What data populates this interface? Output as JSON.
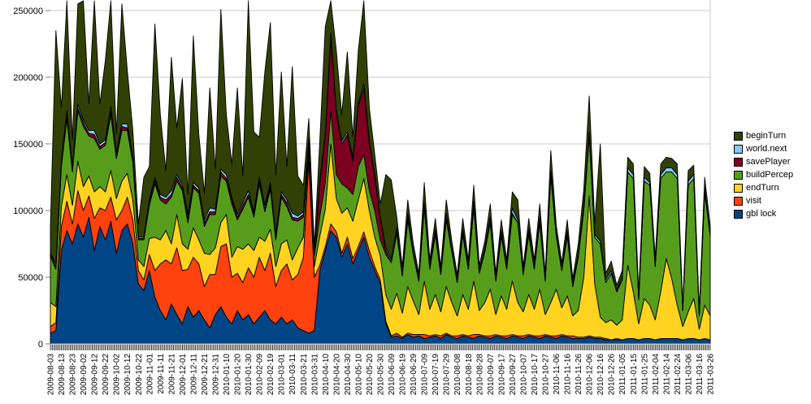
{
  "chart_data": {
    "type": "area",
    "stacked": true,
    "title": "",
    "xlabel": "",
    "ylabel": "",
    "grid": true,
    "legend_position": "right",
    "values_unit": 1000,
    "sample_interval_days": 5,
    "y_axis": {
      "ticks": [
        0,
        50000,
        100000,
        150000,
        200000,
        250000
      ],
      "labels": [
        "0",
        "50000",
        "100000",
        "150000",
        "200000",
        "250000"
      ],
      "ylim": [
        0,
        250000
      ]
    },
    "x_axis": {
      "tick_interval_days": 10,
      "tick_labels": [
        "2009-08-03",
        "2009-08-13",
        "2009-08-23",
        "2009-09-02",
        "2009-09-12",
        "2009-09-22",
        "2009-10-02",
        "2009-10-12",
        "2009-10-22",
        "2009-11-01",
        "2009-11-11",
        "2009-11-21",
        "2009-12-01",
        "2009-12-11",
        "2009-12-21",
        "2009-12-31",
        "2010-01-10",
        "2010-01-20",
        "2010-01-30",
        "2010-02-09",
        "2010-02-19",
        "2010-03-01",
        "2010-03-11",
        "2010-03-21",
        "2010-03-31",
        "2010-04-10",
        "2010-04-20",
        "2010-04-30",
        "2010-05-10",
        "2010-05-20",
        "2010-05-30",
        "2010-06-09",
        "2010-06-19",
        "2010-06-29",
        "2010-07-09",
        "2010-07-19",
        "2010-07-29",
        "2010-08-08",
        "2010-08-18",
        "2010-08-28",
        "2010-09-07",
        "2010-09-17",
        "2010-09-27",
        "2010-10-07",
        "2010-10-17",
        "2010-10-27",
        "2010-11-06",
        "2010-11-16",
        "2010-11-26",
        "2010-12-06",
        "2010-12-16",
        "2010-12-26",
        "2011-01-05",
        "2011-01-15",
        "2011-01-25",
        "2011-02-04",
        "2011-02-14",
        "2011-02-24",
        "2011-03-06",
        "2011-03-16",
        "2011-03-26"
      ]
    },
    "series": [
      {
        "name": "gbl lock",
        "color": "#004586",
        "values": [
          8,
          10,
          70,
          85,
          75,
          90,
          80,
          95,
          70,
          88,
          78,
          92,
          68,
          85,
          90,
          75,
          45,
          40,
          55,
          35,
          25,
          18,
          30,
          22,
          15,
          28,
          20,
          25,
          18,
          12,
          22,
          28,
          20,
          15,
          25,
          18,
          22,
          15,
          20,
          25,
          18,
          15,
          20,
          15,
          18,
          12,
          10,
          8,
          10,
          55,
          70,
          85,
          80,
          65,
          75,
          60,
          70,
          80,
          65,
          55,
          45,
          15,
          5,
          6,
          4,
          7,
          5,
          6,
          4,
          5,
          6,
          4,
          7,
          5,
          4,
          6,
          5,
          4,
          6,
          5,
          4,
          6,
          5,
          4,
          6,
          5,
          4,
          6,
          5,
          4,
          6,
          5,
          4,
          6,
          5,
          4,
          4,
          4,
          5,
          4,
          4,
          3,
          3,
          3,
          3,
          4,
          4,
          3,
          4,
          4,
          3,
          4,
          4,
          4,
          4,
          3,
          4,
          4,
          3,
          4,
          3
        ]
      },
      {
        "name": "visit",
        "color": "#ff420e",
        "values": [
          5,
          6,
          18,
          22,
          15,
          25,
          20,
          16,
          24,
          14,
          22,
          18,
          25,
          15,
          20,
          18,
          10,
          8,
          12,
          20,
          35,
          45,
          30,
          50,
          40,
          28,
          45,
          35,
          25,
          40,
          30,
          45,
          55,
          35,
          28,
          28,
          35,
          35,
          45,
          30,
          50,
          28,
          35,
          45,
          30,
          40,
          55,
          130,
          40,
          4,
          3,
          5,
          4,
          3,
          5,
          4,
          3,
          4,
          5,
          3,
          3,
          2,
          1,
          2,
          1,
          1,
          2,
          1,
          3,
          1,
          1,
          2,
          1,
          1,
          2,
          1,
          1,
          3,
          1,
          1,
          2,
          1,
          1,
          2,
          1,
          1,
          2,
          1,
          1,
          2,
          1,
          1,
          2,
          1,
          1,
          2,
          1,
          1,
          1,
          1,
          1,
          1,
          0,
          1,
          0,
          0,
          0,
          0,
          0,
          0,
          0,
          0,
          0,
          0,
          0,
          0,
          0,
          0,
          0,
          0,
          0
        ]
      },
      {
        "name": "endTurn",
        "color": "#ffd320",
        "values": [
          18,
          12,
          15,
          20,
          14,
          22,
          18,
          15,
          20,
          16,
          14,
          20,
          16,
          22,
          18,
          15,
          8,
          10,
          12,
          25,
          18,
          22,
          15,
          25,
          20,
          15,
          22,
          18,
          25,
          15,
          20,
          18,
          22,
          15,
          20,
          25,
          18,
          20,
          15,
          22,
          18,
          15,
          20,
          18,
          15,
          20,
          15,
          8,
          8,
          22,
          28,
          60,
          25,
          30,
          22,
          28,
          35,
          40,
          30,
          22,
          18,
          20,
          20,
          30,
          18,
          35,
          25,
          15,
          40,
          20,
          30,
          18,
          35,
          25,
          15,
          30,
          20,
          40,
          18,
          25,
          35,
          15,
          30,
          20,
          40,
          25,
          18,
          30,
          20,
          35,
          15,
          25,
          35,
          20,
          30,
          15,
          20,
          45,
          105,
          40,
          15,
          12,
          15,
          10,
          15,
          55,
          35,
          12,
          30,
          25,
          15,
          35,
          60,
          45,
          25,
          10,
          20,
          30,
          8,
          25,
          18
        ]
      },
      {
        "name": "buildPercep",
        "color": "#579d1c",
        "values": [
          35,
          28,
          30,
          42,
          25,
          38,
          45,
          30,
          40,
          28,
          35,
          42,
          30,
          38,
          32,
          28,
          15,
          20,
          25,
          40,
          30,
          20,
          35,
          25,
          40,
          20,
          30,
          35,
          20,
          30,
          25,
          35,
          25,
          40,
          20,
          30,
          35,
          25,
          40,
          22,
          30,
          20,
          35,
          25,
          30,
          20,
          15,
          6,
          8,
          15,
          20,
          25,
          18,
          22,
          15,
          20,
          25,
          18,
          15,
          20,
          12,
          30,
          35,
          45,
          28,
          50,
          35,
          25,
          55,
          30,
          45,
          28,
          50,
          38,
          25,
          45,
          30,
          55,
          28,
          38,
          50,
          25,
          45,
          30,
          50,
          60,
          28,
          45,
          30,
          50,
          25,
          95,
          40,
          28,
          45,
          22,
          40,
          50,
          45,
          35,
          55,
          30,
          35,
          25,
          30,
          70,
          85,
          18,
          88,
          90,
          40,
          85,
          65,
          80,
          95,
          12,
          95,
          90,
          10,
          85,
          60
        ]
      },
      {
        "name": "savePlayer",
        "color": "#7e0021",
        "values": [
          1,
          2,
          2,
          3,
          2,
          2,
          3,
          2,
          3,
          2,
          2,
          3,
          2,
          3,
          2,
          2,
          1,
          1,
          2,
          3,
          2,
          3,
          2,
          3,
          2,
          3,
          2,
          2,
          3,
          2,
          2,
          3,
          2,
          3,
          2,
          3,
          2,
          2,
          3,
          2,
          3,
          2,
          2,
          3,
          2,
          2,
          2,
          1,
          1,
          25,
          35,
          55,
          45,
          30,
          40,
          25,
          45,
          50,
          35,
          25,
          15,
          3,
          0,
          1,
          0,
          1,
          0,
          0,
          1,
          0,
          1,
          0,
          1,
          0,
          0,
          1,
          0,
          1,
          0,
          0,
          1,
          0,
          1,
          0,
          1,
          0,
          0,
          1,
          0,
          1,
          0,
          1,
          0,
          0,
          1,
          0,
          0,
          1,
          1,
          0,
          0,
          0,
          0,
          0,
          0,
          0,
          0,
          0,
          0,
          0,
          0,
          0,
          0,
          0,
          0,
          0,
          0,
          0,
          0,
          0,
          0
        ]
      },
      {
        "name": "world.next",
        "color": "#83caff",
        "values": [
          1,
          2,
          2,
          3,
          2,
          3,
          2,
          2,
          3,
          2,
          2,
          3,
          2,
          2,
          3,
          2,
          1,
          1,
          2,
          2,
          2,
          2,
          3,
          2,
          2,
          3,
          2,
          2,
          2,
          3,
          2,
          2,
          3,
          2,
          2,
          2,
          3,
          2,
          2,
          3,
          2,
          2,
          2,
          2,
          3,
          2,
          2,
          1,
          1,
          2,
          2,
          3,
          3,
          2,
          2,
          3,
          2,
          3,
          2,
          2,
          2,
          2,
          2,
          3,
          2,
          4,
          2,
          2,
          3,
          2,
          3,
          2,
          4,
          2,
          2,
          3,
          2,
          4,
          2,
          2,
          3,
          2,
          3,
          2,
          4,
          2,
          2,
          3,
          2,
          3,
          2,
          3,
          2,
          2,
          3,
          2,
          2,
          3,
          2,
          2,
          2,
          2,
          2,
          1,
          2,
          3,
          3,
          2,
          3,
          2,
          2,
          3,
          3,
          3,
          3,
          1,
          3,
          3,
          1,
          3,
          2
        ]
      },
      {
        "name": "beginTurn",
        "color": "#314004",
        "values": [
          20,
          175,
          40,
          85,
          20,
          75,
          95,
          20,
          100,
          30,
          60,
          110,
          15,
          90,
          40,
          20,
          10,
          45,
          25,
          115,
          60,
          20,
          100,
          35,
          80,
          15,
          110,
          40,
          20,
          90,
          30,
          120,
          45,
          25,
          95,
          20,
          160,
          60,
          30,
          100,
          120,
          45,
          90,
          25,
          110,
          30,
          20,
          15,
          5,
          30,
          80,
          85,
          45,
          20,
          60,
          15,
          40,
          70,
          25,
          15,
          10,
          55,
          60,
          8,
          5,
          10,
          6,
          4,
          15,
          5,
          8,
          4,
          10,
          6,
          4,
          8,
          5,
          12,
          4,
          6,
          10,
          4,
          8,
          5,
          12,
          15,
          4,
          8,
          5,
          10,
          4,
          15,
          6,
          4,
          8,
          4,
          8,
          12,
          27,
          8,
          73,
          5,
          7,
          4,
          5,
          8,
          8,
          4,
          8,
          7,
          5,
          8,
          8,
          7,
          8,
          3,
          8,
          7,
          3,
          8,
          5
        ]
      }
    ],
    "legend": {
      "items": [
        {
          "label": "beginTurn",
          "color": "#314004"
        },
        {
          "label": "world.next",
          "color": "#83caff"
        },
        {
          "label": "savePlayer",
          "color": "#7e0021"
        },
        {
          "label": "buildPercep",
          "color": "#579d1c"
        },
        {
          "label": "endTurn",
          "color": "#ffd320"
        },
        {
          "label": "visit",
          "color": "#ff420e"
        },
        {
          "label": "gbl lock",
          "color": "#004586"
        }
      ]
    }
  }
}
